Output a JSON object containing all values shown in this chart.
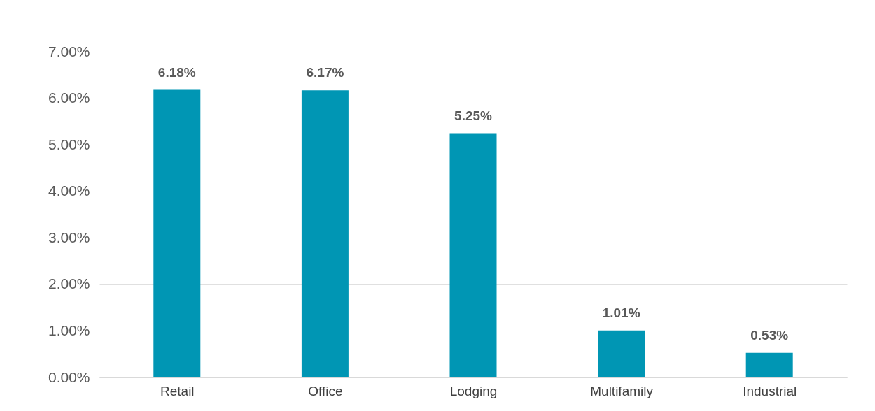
{
  "chart_data": {
    "type": "bar",
    "categories": [
      "Retail",
      "Office",
      "Lodging",
      "Multifamily",
      "Industrial"
    ],
    "values": [
      6.18,
      6.17,
      5.25,
      1.01,
      0.53
    ],
    "value_labels": [
      "6.18%",
      "6.17%",
      "5.25%",
      "1.01%",
      "0.53%"
    ],
    "color": "#0096b4",
    "ylim": [
      0,
      7
    ],
    "yticks": [
      {
        "value": 0,
        "label": "0.00%"
      },
      {
        "value": 1,
        "label": "1.00%"
      },
      {
        "value": 2,
        "label": "2.00%"
      },
      {
        "value": 3,
        "label": "3.00%"
      },
      {
        "value": 4,
        "label": "4.00%"
      },
      {
        "value": 5,
        "label": "5.00%"
      },
      {
        "value": 6,
        "label": "6.00%"
      },
      {
        "value": 7,
        "label": "7.00%"
      }
    ],
    "grid": "y"
  }
}
